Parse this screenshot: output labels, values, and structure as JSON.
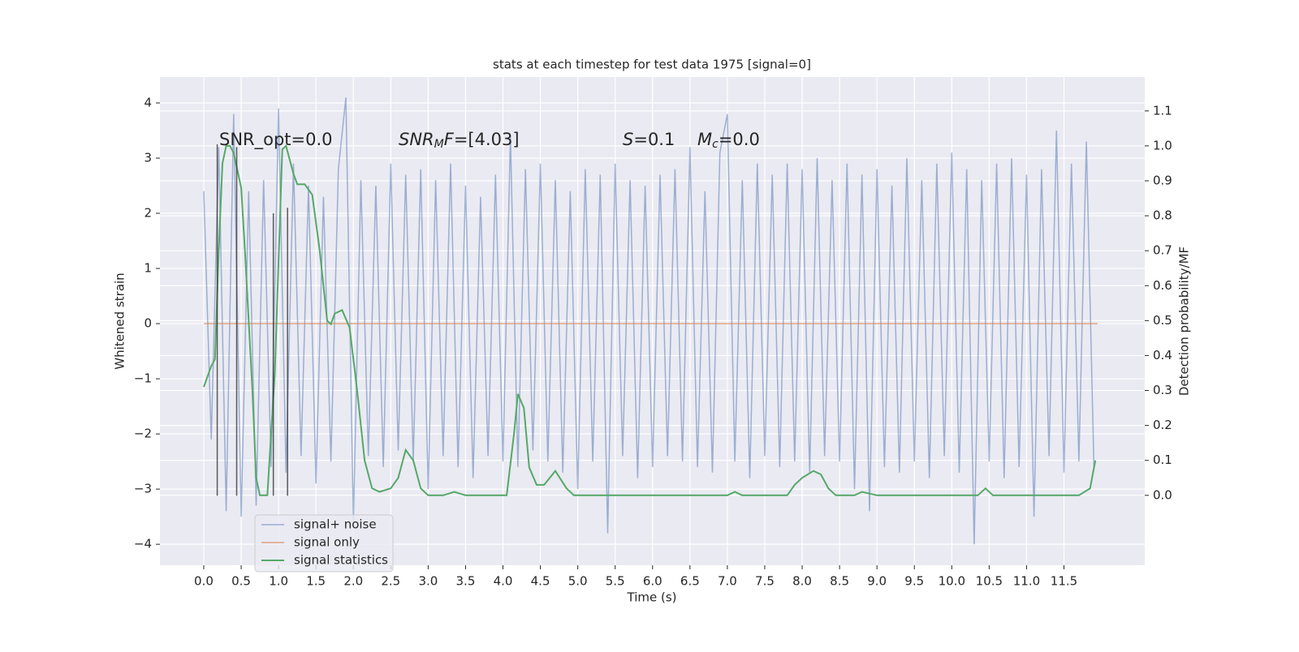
{
  "chart_data": {
    "type": "line",
    "title": "stats at each timestep for test data 1975 [signal=0]",
    "xlabel": "Time (s)",
    "ylabel": "Whitened strain",
    "y2label": "Detection probability/MF",
    "xlim": [
      -0.586,
      12.58
    ],
    "ylim": [
      -4.38,
      4.47
    ],
    "y2lim": [
      -0.2,
      1.197
    ],
    "xticks": [
      {
        "value": 0,
        "label": "0.0"
      },
      {
        "value": 0.5,
        "label": "0.5"
      },
      {
        "value": 1,
        "label": "1.0"
      },
      {
        "value": 1.5,
        "label": "1.5"
      },
      {
        "value": 2,
        "label": "2.0"
      },
      {
        "value": 2.5,
        "label": "2.5"
      },
      {
        "value": 3,
        "label": "3.0"
      },
      {
        "value": 3.5,
        "label": "3.5"
      },
      {
        "value": 4,
        "label": "4.0"
      },
      {
        "value": 4.5,
        "label": "4.5"
      },
      {
        "value": 5,
        "label": "5.0"
      },
      {
        "value": 5.5,
        "label": "5.5"
      },
      {
        "value": 6,
        "label": "6.0"
      },
      {
        "value": 6.5,
        "label": "6.5"
      },
      {
        "value": 7,
        "label": "7.0"
      },
      {
        "value": 7.5,
        "label": "7.5"
      },
      {
        "value": 8,
        "label": "8.0"
      },
      {
        "value": 8.5,
        "label": "8.5"
      },
      {
        "value": 9,
        "label": "9.0"
      },
      {
        "value": 9.5,
        "label": "9.5"
      },
      {
        "value": 10,
        "label": "10.0"
      },
      {
        "value": 10.5,
        "label": "10.5"
      },
      {
        "value": 11,
        "label": "11.0"
      },
      {
        "value": 11.5,
        "label": "11.5"
      }
    ],
    "yticks": [
      {
        "value": -4,
        "label": "−4"
      },
      {
        "value": -3,
        "label": "−3"
      },
      {
        "value": -2,
        "label": "−2"
      },
      {
        "value": -1,
        "label": "−1"
      },
      0,
      1,
      2,
      3,
      4
    ],
    "y2ticks": [
      {
        "value": 0,
        "label": "0.0"
      },
      {
        "value": 0.1,
        "label": "0.1"
      },
      {
        "value": 0.2,
        "label": "0.2"
      },
      {
        "value": 0.3,
        "label": "0.3"
      },
      {
        "value": 0.4,
        "label": "0.4"
      },
      {
        "value": 0.5,
        "label": "0.5"
      },
      {
        "value": 0.6,
        "label": "0.6"
      },
      {
        "value": 0.7,
        "label": "0.7"
      },
      {
        "value": 0.8,
        "label": "0.8"
      },
      {
        "value": 0.9,
        "label": "0.9"
      },
      {
        "value": 1,
        "label": "1.0"
      },
      {
        "value": 1.1,
        "label": "1.1"
      }
    ],
    "grid": true,
    "legend": "lower left",
    "series": [
      {
        "name": "signal+ noise",
        "color": "#4c72b0",
        "x": [
          0.0,
          0.1,
          0.2,
          0.3,
          0.4,
          0.5,
          0.6,
          0.7,
          0.8,
          0.9,
          1.0,
          1.1,
          1.2,
          1.3,
          1.4,
          1.5,
          1.6,
          1.7,
          1.8,
          1.9,
          2.0,
          2.1,
          2.2,
          2.3,
          2.4,
          2.5,
          2.6,
          2.7,
          2.8,
          2.9,
          3.0,
          3.1,
          3.2,
          3.3,
          3.4,
          3.5,
          3.6,
          3.7,
          3.8,
          3.9,
          4.0,
          4.1,
          4.2,
          4.3,
          4.4,
          4.5,
          4.6,
          4.7,
          4.8,
          4.9,
          5.0,
          5.1,
          5.2,
          5.3,
          5.4,
          5.5,
          5.6,
          5.7,
          5.8,
          5.9,
          6.0,
          6.1,
          6.2,
          6.3,
          6.4,
          6.5,
          6.6,
          6.7,
          6.8,
          6.9,
          7.0,
          7.1,
          7.2,
          7.3,
          7.4,
          7.5,
          7.6,
          7.7,
          7.8,
          7.9,
          8.0,
          8.1,
          8.2,
          8.3,
          8.4,
          8.5,
          8.6,
          8.7,
          8.8,
          8.9,
          9.0,
          9.1,
          9.2,
          9.3,
          9.4,
          9.5,
          9.6,
          9.7,
          9.8,
          9.9,
          10.0,
          10.1,
          10.2,
          10.3,
          10.4,
          10.5,
          10.6,
          10.7,
          10.8,
          10.9,
          11.0,
          11.1,
          11.2,
          11.3,
          11.4,
          11.5,
          11.6,
          11.7,
          11.8,
          11.9
        ],
        "values": [
          2.4,
          -2.1,
          3.2,
          -3.4,
          3.8,
          -3.5,
          2.4,
          -3.3,
          2.6,
          -2.6,
          3.9,
          -2.7,
          2.9,
          -2.4,
          2.5,
          -2.9,
          2.3,
          -2.5,
          2.8,
          4.1,
          -3.6,
          2.6,
          -2.4,
          2.5,
          -2.6,
          2.9,
          -2.3,
          2.7,
          -2.5,
          2.8,
          -3.0,
          2.6,
          -2.4,
          2.9,
          -2.6,
          2.5,
          -2.8,
          2.3,
          -2.4,
          2.7,
          -2.5,
          3.4,
          -2.6,
          2.8,
          -2.3,
          2.9,
          -2.5,
          2.6,
          -2.7,
          2.4,
          -3.0,
          2.8,
          -2.5,
          2.7,
          -3.8,
          2.9,
          -2.4,
          2.6,
          -2.8,
          2.5,
          -2.6,
          2.7,
          -2.4,
          2.8,
          -2.5,
          3.2,
          -2.6,
          2.4,
          -2.7,
          3.1,
          3.8,
          -2.5,
          2.6,
          -2.8,
          2.9,
          -2.4,
          2.7,
          -2.6,
          2.9,
          -2.5,
          2.8,
          -2.7,
          3.0,
          -2.4,
          2.6,
          -2.5,
          2.9,
          -3.0,
          2.7,
          -3.4,
          2.8,
          -2.6,
          2.5,
          -2.7,
          3.0,
          -2.5,
          2.6,
          -2.8,
          2.9,
          -2.4,
          3.1,
          -2.7,
          2.8,
          -4.0,
          2.6,
          -2.5,
          2.9,
          -2.8,
          3.0,
          -2.6,
          2.7,
          -3.5,
          2.8,
          -2.4,
          3.5,
          -2.7,
          2.9,
          -2.5,
          3.3,
          -2.6
        ]
      },
      {
        "name": "signal only",
        "color": "#dd8452",
        "x": [
          0.0,
          11.95
        ],
        "values": [
          0,
          0
        ]
      },
      {
        "name": "signal statistics",
        "color": "#55a868",
        "axis": "y2",
        "x": [
          0.0,
          0.1,
          0.15,
          0.2,
          0.25,
          0.3,
          0.35,
          0.4,
          0.5,
          0.55,
          0.65,
          0.7,
          0.75,
          0.85,
          0.95,
          1.05,
          1.1,
          1.2,
          1.25,
          1.35,
          1.45,
          1.55,
          1.65,
          1.7,
          1.75,
          1.85,
          1.95,
          2.05,
          2.15,
          2.25,
          2.35,
          2.5,
          2.6,
          2.7,
          2.8,
          2.9,
          3.0,
          3.2,
          3.35,
          3.5,
          4.05,
          4.15,
          4.2,
          4.28,
          4.35,
          4.45,
          4.55,
          4.7,
          4.85,
          4.95,
          7.0,
          7.1,
          7.2,
          7.8,
          7.9,
          8.0,
          8.15,
          8.25,
          8.35,
          8.45,
          8.7,
          8.8,
          9.0,
          10.35,
          10.45,
          10.55,
          11.7,
          11.85,
          11.92
        ],
        "values": [
          0.31,
          0.37,
          0.39,
          0.7,
          0.95,
          1.0,
          1.0,
          0.98,
          0.88,
          0.7,
          0.3,
          0.05,
          0.0,
          0.0,
          0.35,
          0.99,
          1.0,
          0.92,
          0.89,
          0.89,
          0.86,
          0.7,
          0.5,
          0.49,
          0.52,
          0.53,
          0.48,
          0.3,
          0.1,
          0.02,
          0.01,
          0.02,
          0.05,
          0.13,
          0.1,
          0.02,
          0.0,
          0.0,
          0.01,
          0.0,
          0.0,
          0.18,
          0.29,
          0.25,
          0.08,
          0.03,
          0.03,
          0.07,
          0.02,
          0.0,
          0.0,
          0.01,
          0.0,
          0.0,
          0.03,
          0.05,
          0.07,
          0.06,
          0.02,
          0.0,
          0.0,
          0.01,
          0.0,
          0.0,
          0.02,
          0.0,
          0.0,
          0.02,
          0.1
        ]
      }
    ],
    "vlines": {
      "x": [
        0.18,
        0.44,
        0.93,
        1.12
      ],
      "ymin": -3.12,
      "ymax": [
        3.25,
        3.2,
        2.0,
        2.1
      ],
      "color": "#333333"
    },
    "annotations": [
      [
        {
          "text": "SNR_opt=0.0",
          "style": "normal"
        }
      ],
      [
        {
          "text": "SNR",
          "style": "italic"
        },
        {
          "text": "M",
          "style": "sub"
        },
        {
          "text": "F",
          "style": "italic"
        },
        {
          "text": "=[4.03]",
          "style": "normal"
        }
      ],
      [
        {
          "text": "S",
          "style": "italic"
        },
        {
          "text": "=0.1",
          "style": "normal"
        }
      ],
      [
        {
          "text": "M",
          "style": "italic"
        },
        {
          "text": "c",
          "style": "sub"
        },
        {
          "text": "=0.0",
          "style": "normal"
        }
      ]
    ]
  }
}
